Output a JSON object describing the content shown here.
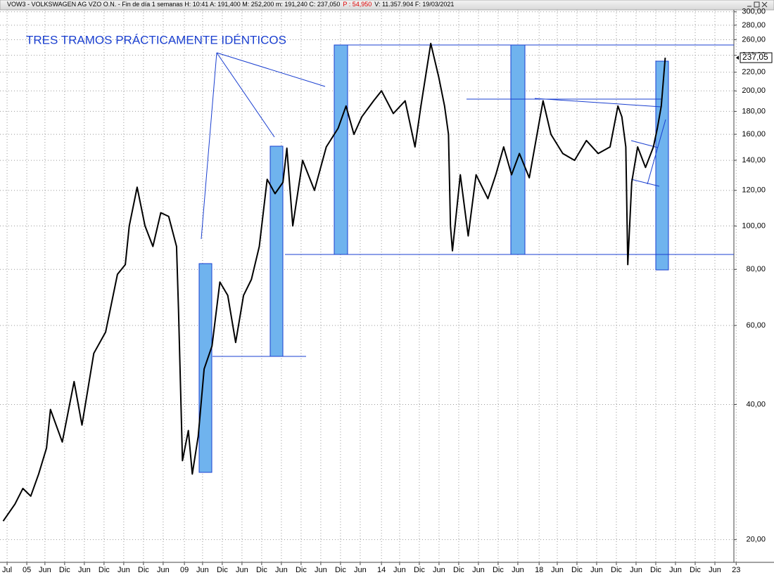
{
  "chart_data": {
    "type": "line",
    "title": "VOW3 - VOLKSWAGEN AG VZO O.N. - Fin de día 1 semanas H: 10:41 A: 191,400 M: 252,200 m: 191,240 C: 237,050",
    "change": "P : 54,950",
    "volume_date": "V: 11.357.904 F: 19/03/2021",
    "annotation": "TRES TRAMOS PRÁCTICAMENTE IDÉNTICOS",
    "log_scale": true,
    "grid": true,
    "color": "#000000",
    "xlim": [
      2004.32,
      2023.96
    ],
    "ylim": [
      17.8,
      303
    ],
    "last_price": {
      "value": 237.05,
      "label": "237,05"
    },
    "x": [
      2004.4,
      2004.7,
      2004.9,
      2005.1,
      2005.3,
      2005.5,
      2005.6,
      2005.9,
      2006.2,
      2006.4,
      2006.7,
      2007.0,
      2007.3,
      2007.5,
      2007.6,
      2007.8,
      2008.0,
      2008.2,
      2008.4,
      2008.6,
      2008.8,
      2008.85,
      2008.95,
      2009.1,
      2009.2,
      2009.35,
      2009.5,
      2009.7,
      2009.9,
      2010.1,
      2010.3,
      2010.5,
      2010.7,
      2010.9,
      2011.1,
      2011.3,
      2011.5,
      2011.6,
      2011.75,
      2012.0,
      2012.3,
      2012.6,
      2012.9,
      2013.1,
      2013.3,
      2013.5,
      2013.8,
      2014.0,
      2014.3,
      2014.6,
      2014.85,
      2015.0,
      2015.25,
      2015.45,
      2015.6,
      2015.7,
      2015.75,
      2015.8,
      2016.0,
      2016.2,
      2016.4,
      2016.7,
      2016.9,
      2017.1,
      2017.3,
      2017.5,
      2017.75,
      2018.0,
      2018.1,
      2018.3,
      2018.6,
      2018.9,
      2019.2,
      2019.5,
      2019.8,
      2020.0,
      2020.1,
      2020.2,
      2020.25,
      2020.35,
      2020.5,
      2020.7,
      2020.9,
      2021.0,
      2021.1,
      2021.2
    ],
    "values": [
      22,
      24,
      26,
      25,
      28,
      32,
      39,
      33,
      45,
      36,
      52,
      58,
      78,
      82,
      100,
      122,
      100,
      90,
      107,
      105,
      90,
      65,
      30,
      35,
      28,
      34,
      48,
      54,
      75,
      70,
      55,
      70,
      76,
      90,
      127,
      118,
      125,
      149,
      100,
      140,
      120,
      150,
      165,
      185,
      160,
      175,
      190,
      200,
      178,
      190,
      150,
      185,
      255,
      215,
      185,
      160,
      100,
      88,
      130,
      95,
      130,
      115,
      130,
      150,
      130,
      145,
      128,
      170,
      190,
      160,
      145,
      140,
      155,
      145,
      150,
      185,
      175,
      150,
      82,
      125,
      150,
      135,
      150,
      165,
      185,
      237
    ],
    "yticks": [
      {
        "value": 300,
        "label": "300,00"
      },
      {
        "value": 280,
        "label": "280,00"
      },
      {
        "value": 260,
        "label": "260,00"
      },
      {
        "value": 240,
        "label": "240,00"
      },
      {
        "value": 220,
        "label": "220,00"
      },
      {
        "value": 200,
        "label": "200,00"
      },
      {
        "value": 180,
        "label": "180,00"
      },
      {
        "value": 160,
        "label": "160,00"
      },
      {
        "value": 140,
        "label": "140,00"
      },
      {
        "value": 120,
        "label": "120,00"
      },
      {
        "value": 100,
        "label": "100,00"
      },
      {
        "value": 80,
        "label": "80,00"
      },
      {
        "value": 60,
        "label": "60,00"
      },
      {
        "value": 40,
        "label": "40,00"
      },
      {
        "value": 20,
        "label": "20,00"
      }
    ],
    "xticks": [
      {
        "value": 2004.5,
        "label": "Jul"
      },
      {
        "value": 2005,
        "label": "05"
      },
      {
        "value": 2005.46,
        "label": "Jun"
      },
      {
        "value": 2005.96,
        "label": "Dic"
      },
      {
        "value": 2006.46,
        "label": "Jun"
      },
      {
        "value": 2006.96,
        "label": "Dic"
      },
      {
        "value": 2007.46,
        "label": "Jun"
      },
      {
        "value": 2007.96,
        "label": "Dic"
      },
      {
        "value": 2008.46,
        "label": "Jun"
      },
      {
        "value": 2009,
        "label": "09"
      },
      {
        "value": 2009.46,
        "label": "Jun"
      },
      {
        "value": 2009.96,
        "label": "Dic"
      },
      {
        "value": 2010.46,
        "label": "Jun"
      },
      {
        "value": 2010.96,
        "label": "Dic"
      },
      {
        "value": 2011.46,
        "label": "Jun"
      },
      {
        "value": 2011.96,
        "label": "Dic"
      },
      {
        "value": 2012.46,
        "label": "Jun"
      },
      {
        "value": 2012.96,
        "label": "Dic"
      },
      {
        "value": 2013.46,
        "label": "Jun"
      },
      {
        "value": 2014,
        "label": "14"
      },
      {
        "value": 2014.46,
        "label": "Jun"
      },
      {
        "value": 2014.96,
        "label": "Dic"
      },
      {
        "value": 2015.46,
        "label": "Jun"
      },
      {
        "value": 2015.96,
        "label": "Dic"
      },
      {
        "value": 2016.46,
        "label": "Jun"
      },
      {
        "value": 2016.96,
        "label": "Dic"
      },
      {
        "value": 2017.46,
        "label": "Jun"
      },
      {
        "value": 2018,
        "label": "18"
      },
      {
        "value": 2018.46,
        "label": "Jun"
      },
      {
        "value": 2018.96,
        "label": "Dic"
      },
      {
        "value": 2019.46,
        "label": "Jun"
      },
      {
        "value": 2019.96,
        "label": "Dic"
      },
      {
        "value": 2020.46,
        "label": "Jun"
      },
      {
        "value": 2020.96,
        "label": "Dic"
      },
      {
        "value": 2021.46,
        "label": "Jun"
      },
      {
        "value": 2021.96,
        "label": "Dic"
      },
      {
        "value": 2022.46,
        "label": "Jun"
      },
      {
        "value": 2023,
        "label": "23"
      }
    ]
  }
}
